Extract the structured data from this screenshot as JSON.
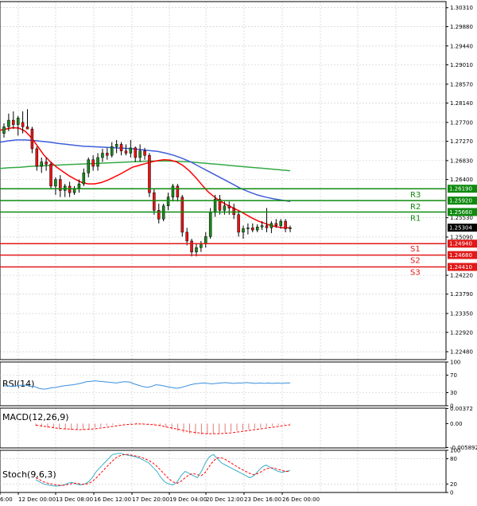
{
  "colors": {
    "support": "#e11919",
    "resistance": "#0f8a0f",
    "ma_fast": "#ff0000",
    "ma_mid": "#3f5ed8",
    "ma_slow": "#33aa44",
    "candle": "#1a8a1a",
    "candle_down": "#ee1111",
    "current_price_bg": "#000000",
    "rsi": "#3a8fdd",
    "macd_hist": "#e07a7a",
    "macd_signal": "#ff0000",
    "stoch_k": "#3ab0c8",
    "stoch_d": "#ff0000",
    "grid": "#c8c8c8"
  },
  "chart_data": [
    {
      "type": "candlestick",
      "panel": "price",
      "y_ticks": [
        "1.30310",
        "1.29880",
        "1.29440",
        "1.29010",
        "1.28570",
        "1.28140",
        "1.27700",
        "1.27270",
        "1.26830",
        "1.26400",
        "1.25530",
        "1.25090",
        "1.24220",
        "1.23790",
        "1.23350",
        "1.22920",
        "1.22480"
      ],
      "ylim": [
        1.223,
        1.3045
      ],
      "x_ticks": [
        "6:00",
        "12 Dec 00:00",
        "13 Dec 08:00",
        "16 Dec 12:00",
        "17 Dec 20:00",
        "19 Dec 04:00",
        "20 Dec 12:00",
        "23 Dec 16:00",
        "26 Dec 00:00"
      ],
      "current_price": "1.25304",
      "levels": [
        {
          "label": "R3",
          "price": "1.26190",
          "kind": "resistance"
        },
        {
          "label": "R2",
          "price": "1.25920",
          "kind": "resistance"
        },
        {
          "label": "R1",
          "price": "1.25660",
          "kind": "resistance"
        },
        {
          "label": "S1",
          "price": "1.24940",
          "kind": "support"
        },
        {
          "label": "S2",
          "price": "1.24680",
          "kind": "support"
        },
        {
          "label": "S3",
          "price": "1.24410",
          "kind": "support"
        }
      ],
      "candles": [
        [
          1.2745,
          1.2768,
          1.2735,
          1.276
        ],
        [
          1.276,
          1.279,
          1.275,
          1.2775
        ],
        [
          1.2775,
          1.2795,
          1.2755,
          1.2765
        ],
        [
          1.2765,
          1.2785,
          1.274,
          1.278
        ],
        [
          1.277,
          1.2795,
          1.2745,
          1.276
        ],
        [
          1.276,
          1.28,
          1.2755,
          1.2755
        ],
        [
          1.2755,
          1.276,
          1.27,
          1.271
        ],
        [
          1.271,
          1.2715,
          1.266,
          1.267
        ],
        [
          1.267,
          1.269,
          1.2655,
          1.268
        ],
        [
          1.268,
          1.269,
          1.266,
          1.2675
        ],
        [
          1.2675,
          1.268,
          1.262,
          1.2625
        ],
        [
          1.2625,
          1.2645,
          1.2605,
          1.264
        ],
        [
          1.264,
          1.265,
          1.26,
          1.2615
        ],
        [
          1.2615,
          1.263,
          1.26,
          1.2625
        ],
        [
          1.2625,
          1.2635,
          1.26,
          1.261
        ],
        [
          1.261,
          1.2625,
          1.2605,
          1.262
        ],
        [
          1.262,
          1.264,
          1.261,
          1.263
        ],
        [
          1.263,
          1.2665,
          1.2625,
          1.2655
        ],
        [
          1.2655,
          1.269,
          1.2645,
          1.2685
        ],
        [
          1.2685,
          1.2695,
          1.266,
          1.267
        ],
        [
          1.267,
          1.27,
          1.266,
          1.269
        ],
        [
          1.269,
          1.271,
          1.268,
          1.27
        ],
        [
          1.27,
          1.2712,
          1.2685,
          1.2695
        ],
        [
          1.2695,
          1.2725,
          1.269,
          1.2715
        ],
        [
          1.2715,
          1.273,
          1.27,
          1.272
        ],
        [
          1.272,
          1.2725,
          1.2695,
          1.2705
        ],
        [
          1.2705,
          1.272,
          1.2695,
          1.27
        ],
        [
          1.27,
          1.273,
          1.269,
          1.2712
        ],
        [
          1.2712,
          1.2715,
          1.268,
          1.269
        ],
        [
          1.269,
          1.272,
          1.268,
          1.2705
        ],
        [
          1.2705,
          1.2712,
          1.2685,
          1.2695
        ],
        [
          1.2695,
          1.27,
          1.26,
          1.261
        ],
        [
          1.261,
          1.262,
          1.256,
          1.257
        ],
        [
          1.257,
          1.2585,
          1.254,
          1.255
        ],
        [
          1.255,
          1.2585,
          1.2545,
          1.258
        ],
        [
          1.258,
          1.261,
          1.257,
          1.26
        ],
        [
          1.26,
          1.263,
          1.259,
          1.2625
        ],
        [
          1.2625,
          1.263,
          1.259,
          1.26
        ],
        [
          1.26,
          1.2605,
          1.251,
          1.252
        ],
        [
          1.252,
          1.253,
          1.249,
          1.25
        ],
        [
          1.25,
          1.2505,
          1.2465,
          1.2475
        ],
        [
          1.2475,
          1.2495,
          1.2465,
          1.2485
        ],
        [
          1.2485,
          1.25,
          1.2475,
          1.2495
        ],
        [
          1.2495,
          1.252,
          1.2485,
          1.251
        ],
        [
          1.251,
          1.2575,
          1.2505,
          1.2565
        ],
        [
          1.2565,
          1.2605,
          1.2555,
          1.2595
        ],
        [
          1.2595,
          1.2605,
          1.256,
          1.257
        ],
        [
          1.257,
          1.259,
          1.256,
          1.258
        ],
        [
          1.258,
          1.259,
          1.256,
          1.2575
        ],
        [
          1.2575,
          1.2585,
          1.255,
          1.256
        ],
        [
          1.256,
          1.2568,
          1.251,
          1.252
        ],
        [
          1.252,
          1.2535,
          1.2505,
          1.2528
        ],
        [
          1.2528,
          1.254,
          1.2515,
          1.253
        ],
        [
          1.253,
          1.254,
          1.252,
          1.2525
        ],
        [
          1.2525,
          1.2538,
          1.252,
          1.2532
        ],
        [
          1.2532,
          1.2545,
          1.2525,
          1.2535
        ],
        [
          1.2535,
          1.2575,
          1.252,
          1.253
        ],
        [
          1.253,
          1.2545,
          1.2518,
          1.254
        ],
        [
          1.254,
          1.255,
          1.253,
          1.2535
        ],
        [
          1.2535,
          1.255,
          1.2528,
          1.2545
        ],
        [
          1.2545,
          1.255,
          1.252,
          1.2528
        ],
        [
          1.2528,
          1.2535,
          1.252,
          1.253
        ]
      ],
      "ma_fast": [
        1.2752,
        1.2755,
        1.2758,
        1.2757,
        1.275,
        1.2735,
        1.2715,
        1.2695,
        1.268,
        1.2668,
        1.2658,
        1.2648,
        1.264,
        1.2633,
        1.263,
        1.263,
        1.2633,
        1.2638,
        1.2645,
        1.2652,
        1.266,
        1.2668,
        1.2672,
        1.2676,
        1.268,
        1.2683,
        1.2685,
        1.2684,
        1.268,
        1.2672,
        1.266,
        1.2645,
        1.2628,
        1.2612,
        1.26,
        1.259,
        1.2582,
        1.2575,
        1.2568,
        1.256,
        1.2552,
        1.2545,
        1.254,
        1.2535,
        1.2532,
        1.253,
        1.253
      ],
      "ma_mid": [
        1.2725,
        1.2728,
        1.273,
        1.273,
        1.2729,
        1.2727,
        1.2725,
        1.2722,
        1.272,
        1.2718,
        1.2716,
        1.2715,
        1.2714,
        1.2713,
        1.2712,
        1.2711,
        1.271,
        1.2708,
        1.2706,
        1.2704,
        1.27,
        1.2695,
        1.2688,
        1.268,
        1.267,
        1.266,
        1.265,
        1.264,
        1.263,
        1.262,
        1.2612,
        1.2605,
        1.26,
        1.2596,
        1.2593,
        1.259
      ],
      "ma_slow": [
        1.2665,
        1.2667,
        1.2668,
        1.267,
        1.2671,
        1.2672,
        1.2673,
        1.2674,
        1.2675,
        1.2676,
        1.2677,
        1.2678,
        1.2679,
        1.268,
        1.2681,
        1.2682,
        1.2682,
        1.2682,
        1.2681,
        1.268,
        1.2678,
        1.2676,
        1.2674,
        1.2672,
        1.267,
        1.2668,
        1.2666,
        1.2664,
        1.2662,
        1.266
      ],
      "price_labels": [
        "1.26190",
        "1.25920",
        "1.25660",
        "1.25304",
        "1.24940",
        "1.24680",
        "1.24410"
      ]
    },
    {
      "type": "line",
      "panel": "rsi",
      "title": "RSI(14)",
      "y_ticks": [
        "100",
        "70",
        "30",
        "0"
      ],
      "ylim": [
        0,
        100
      ],
      "values": [
        46,
        45,
        44,
        46,
        47,
        47,
        45,
        44,
        40,
        38,
        39,
        41,
        42,
        44,
        46,
        47,
        48,
        50,
        52,
        55,
        56,
        57,
        56,
        55,
        54,
        53,
        52,
        54,
        55,
        54,
        50,
        47,
        44,
        42,
        44,
        48,
        47,
        45,
        43,
        41,
        40,
        42,
        45,
        48,
        50,
        51,
        52,
        51,
        50,
        51,
        52,
        53,
        52,
        51,
        52,
        52,
        53,
        52,
        51,
        52,
        51,
        52,
        51,
        52,
        51,
        52,
        52
      ]
    },
    {
      "type": "bar",
      "panel": "macd",
      "title": "MACD(12,26,9)",
      "y_ticks": [
        "0.00372",
        "0.00",
        "-0.005892"
      ],
      "ylim": [
        -0.006,
        0.0038
      ],
      "values": [
        -0.0005,
        -0.0008,
        -0.001,
        -0.0012,
        -0.0014,
        -0.0015,
        -0.0016,
        -0.0016,
        -0.0015,
        -0.0013,
        -0.001,
        -0.0008,
        -0.0005,
        -0.0003,
        -0.0001,
        0.0001,
        0.0002,
        0.0002,
        0.0001,
        -0.0001,
        -0.0003,
        -0.0006,
        -0.001,
        -0.0014,
        -0.0018,
        -0.0022,
        -0.0024,
        -0.0026,
        -0.0027,
        -0.0026,
        -0.0025,
        -0.0024,
        -0.0022,
        -0.002,
        -0.0018,
        -0.0016,
        -0.0014,
        -0.0012,
        -0.001,
        -0.0008,
        -0.0006,
        -0.0004,
        -0.0002,
        -0.0001
      ],
      "signal": [
        -0.0004,
        -0.0006,
        -0.0008,
        -0.001,
        -0.0012,
        -0.0013,
        -0.0014,
        -0.0015,
        -0.0015,
        -0.0014,
        -0.0013,
        -0.0011,
        -0.0009,
        -0.0007,
        -0.0005,
        -0.0003,
        -0.0002,
        -0.0001,
        -0.0001,
        -0.0002,
        -0.0003,
        -0.0005,
        -0.0008,
        -0.0011,
        -0.0014,
        -0.0017,
        -0.002,
        -0.0022,
        -0.0024,
        -0.0025,
        -0.0025,
        -0.0025,
        -0.0024,
        -0.0023,
        -0.0021,
        -0.0019,
        -0.0017,
        -0.0015,
        -0.0013,
        -0.0011,
        -0.0009,
        -0.0007,
        -0.0005,
        -0.0003
      ]
    },
    {
      "type": "line",
      "panel": "stoch",
      "title": "Stoch(9,6,3)",
      "y_ticks": [
        "100",
        "80",
        "20",
        "0"
      ],
      "ylim": [
        0,
        100
      ],
      "k": [
        30,
        25,
        20,
        18,
        16,
        15,
        16,
        18,
        22,
        24,
        20,
        18,
        20,
        25,
        35,
        50,
        60,
        70,
        80,
        90,
        92,
        93,
        90,
        88,
        86,
        84,
        80,
        75,
        70,
        60,
        50,
        35,
        25,
        20,
        18,
        25,
        40,
        50,
        45,
        40,
        35,
        50,
        70,
        85,
        90,
        80,
        70,
        65,
        60,
        55,
        50,
        45,
        40,
        35,
        40,
        50,
        60,
        65,
        60,
        55,
        50,
        48,
        50,
        52
      ],
      "d": [
        35,
        30,
        25,
        22,
        20,
        18,
        17,
        17,
        19,
        21,
        22,
        20,
        19,
        21,
        26,
        35,
        45,
        55,
        65,
        75,
        83,
        88,
        90,
        90,
        88,
        86,
        84,
        80,
        76,
        70,
        62,
        52,
        42,
        32,
        25,
        22,
        27,
        35,
        42,
        45,
        42,
        40,
        48,
        62,
        75,
        82,
        82,
        78,
        72,
        66,
        60,
        55,
        50,
        45,
        42,
        45,
        50,
        56,
        58,
        58,
        55,
        52,
        50,
        50
      ]
    }
  ]
}
